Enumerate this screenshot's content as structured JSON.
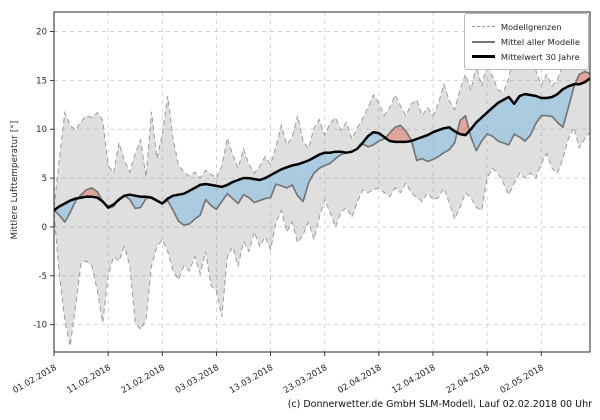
{
  "caption": "(c) Donnerwetter.de GmbH SLM-Modell, Lauf 02.02.2018 00 Uhr",
  "colors": {
    "band_fill": "rgba(150,150,150,0.30)",
    "below_climate_fill": "rgba(120,185,225,0.50)",
    "above_climate_fill": "rgba(226,110,90,0.50)",
    "boundary_line": "#9a9a9a",
    "model_mean_line": "#767676",
    "climate_line": "#000000",
    "grid": "#cbcbcb",
    "axis": "#262626"
  },
  "chart_data": {
    "type": "line",
    "title": "",
    "xlabel": "",
    "ylabel": "Mittlere Lufttemperatur [°]",
    "grid": true,
    "legend_position": "upper right",
    "legend": [
      "Modellgrenzen",
      "Mittel aller Modelle",
      "Mittelwert 30 Jahre"
    ],
    "x_start_date": "01.02.2018",
    "x_days": 99,
    "x_tick_days": [
      0,
      10,
      20,
      30,
      40,
      50,
      60,
      70,
      80,
      90
    ],
    "x_tick_labels": [
      "01.02.2018",
      "11.02.2018",
      "21.02.2018",
      "03.03.2018",
      "13.03.2018",
      "23.03.2018",
      "02.04.2018",
      "12.04.2018",
      "22.04.2018",
      "02.05.2018"
    ],
    "y_ticks": [
      -10,
      -5,
      0,
      5,
      10,
      15,
      20
    ],
    "ylim": [
      -12.8,
      22.0
    ],
    "series": [
      {
        "name": "Modellgrenzen (obere Grenze)",
        "role": "upper",
        "style": "dashed",
        "values": [
          2.0,
          7.0,
          11.7,
          10.4,
          9.9,
          10.8,
          11.4,
          11.2,
          11.7,
          10.9,
          6.3,
          5.5,
          8.6,
          6.8,
          5.6,
          7.5,
          8.9,
          5.1,
          11.8,
          7.0,
          9.5,
          13.4,
          9.0,
          6.3,
          5.6,
          5.2,
          5.6,
          5.0,
          5.8,
          5.4,
          5.0,
          6.2,
          9.1,
          7.4,
          6.0,
          8.0,
          6.4,
          5.5,
          6.2,
          7.2,
          6.4,
          8.2,
          10.4,
          8.4,
          9.2,
          11.4,
          8.8,
          8.0,
          10.1,
          11.0,
          9.4,
          10.6,
          11.2,
          9.9,
          10.7,
          9.0,
          10.1,
          11.1,
          12.2,
          13.5,
          12.7,
          11.4,
          12.2,
          13.5,
          12.4,
          11.4,
          12.6,
          13.0,
          11.4,
          12.2,
          11.4,
          12.6,
          14.6,
          12.9,
          12.0,
          14.1,
          15.6,
          14.0,
          16.5,
          14.4,
          16.7,
          15.4,
          14.0,
          13.8,
          15.2,
          18.1,
          20.0,
          19.2,
          17.5,
          16.0,
          14.5,
          15.6,
          14.4,
          15.1,
          16.6,
          18.0,
          17.4,
          16.4,
          17.1,
          16.4
        ]
      },
      {
        "name": "Modellgrenzen (untere Grenze)",
        "role": "lower",
        "style": "dashed",
        "values": [
          1.4,
          -5.0,
          -9.5,
          -12.2,
          -8.0,
          -3.7,
          -3.5,
          -4.0,
          -6.5,
          -9.8,
          -5.0,
          -3.0,
          -3.5,
          -2.0,
          -4.0,
          -9.7,
          -10.5,
          -9.5,
          -4.0,
          -2.0,
          -1.3,
          -2.5,
          -4.5,
          -5.4,
          -4.0,
          -4.5,
          -3.0,
          -4.8,
          -2.5,
          -6.0,
          -6.5,
          -9.2,
          -3.1,
          -2.0,
          -4.0,
          -1.5,
          -2.5,
          -0.5,
          -2.0,
          -1.0,
          -2.3,
          0.5,
          1.7,
          -0.5,
          0.5,
          -1.6,
          -0.8,
          0.5,
          -1.3,
          1.0,
          2.8,
          1.5,
          0.0,
          1.5,
          2.0,
          1.0,
          2.5,
          3.8,
          3.5,
          3.8,
          4.0,
          3.5,
          3.1,
          4.0,
          3.5,
          4.5,
          3.5,
          3.0,
          2.6,
          3.5,
          2.8,
          3.0,
          4.0,
          2.5,
          0.8,
          2.0,
          3.5,
          3.0,
          2.0,
          1.7,
          5.0,
          6.0,
          5.5,
          4.5,
          3.3,
          4.5,
          5.5,
          5.0,
          5.5,
          5.0,
          6.5,
          7.5,
          6.0,
          5.5,
          7.0,
          9.0,
          10.2,
          8.1,
          9.0,
          9.7
        ]
      },
      {
        "name": "Mittel aller Modelle",
        "role": "mean",
        "style": "solid",
        "values": [
          1.7,
          1.2,
          0.5,
          1.5,
          2.7,
          3.3,
          3.8,
          4.0,
          3.6,
          2.6,
          1.9,
          2.1,
          2.9,
          3.2,
          2.8,
          1.9,
          2.0,
          2.9,
          3.0,
          2.7,
          2.4,
          2.7,
          1.7,
          0.6,
          0.2,
          0.3,
          0.8,
          1.2,
          2.8,
          2.2,
          1.8,
          2.6,
          3.4,
          2.9,
          2.4,
          3.3,
          3.0,
          2.5,
          2.7,
          2.9,
          3.0,
          4.4,
          4.2,
          4.0,
          4.3,
          3.2,
          2.6,
          4.5,
          5.5,
          6.0,
          6.3,
          6.5,
          7.0,
          7.4,
          7.6,
          7.7,
          8.0,
          8.5,
          8.2,
          8.4,
          8.8,
          9.0,
          9.6,
          10.2,
          10.4,
          9.8,
          8.9,
          6.8,
          7.0,
          6.7,
          6.9,
          7.2,
          7.6,
          7.9,
          8.6,
          10.9,
          11.4,
          9.2,
          7.8,
          8.8,
          9.5,
          9.3,
          8.8,
          8.6,
          8.4,
          9.5,
          9.2,
          8.8,
          9.4,
          10.6,
          11.4,
          11.4,
          11.3,
          10.7,
          10.2,
          12.2,
          14.3,
          15.6,
          15.9,
          15.7
        ]
      },
      {
        "name": "Mittelwert 30 Jahre",
        "role": "climate",
        "style": "solid-bold",
        "values": [
          1.7,
          2.1,
          2.4,
          2.7,
          2.9,
          3.0,
          3.1,
          3.1,
          3.0,
          2.6,
          2.0,
          2.3,
          2.8,
          3.2,
          3.3,
          3.2,
          3.1,
          3.1,
          3.0,
          2.7,
          2.4,
          2.9,
          3.2,
          3.3,
          3.4,
          3.7,
          4.0,
          4.3,
          4.4,
          4.3,
          4.2,
          4.1,
          4.3,
          4.6,
          4.8,
          5.0,
          5.0,
          4.9,
          4.8,
          5.0,
          5.3,
          5.6,
          5.9,
          6.1,
          6.3,
          6.4,
          6.6,
          6.8,
          7.1,
          7.4,
          7.6,
          7.6,
          7.7,
          7.7,
          7.6,
          7.7,
          8.0,
          8.6,
          9.3,
          9.7,
          9.6,
          9.2,
          8.8,
          8.7,
          8.7,
          8.7,
          8.8,
          9.0,
          9.2,
          9.4,
          9.7,
          9.9,
          10.1,
          10.2,
          9.8,
          9.5,
          9.4,
          10.0,
          10.7,
          11.2,
          11.7,
          12.2,
          12.7,
          13.0,
          13.3,
          12.6,
          13.4,
          13.6,
          13.5,
          13.4,
          13.2,
          13.2,
          13.3,
          13.6,
          14.1,
          14.4,
          14.6,
          14.6,
          14.8,
          15.2
        ]
      }
    ]
  }
}
